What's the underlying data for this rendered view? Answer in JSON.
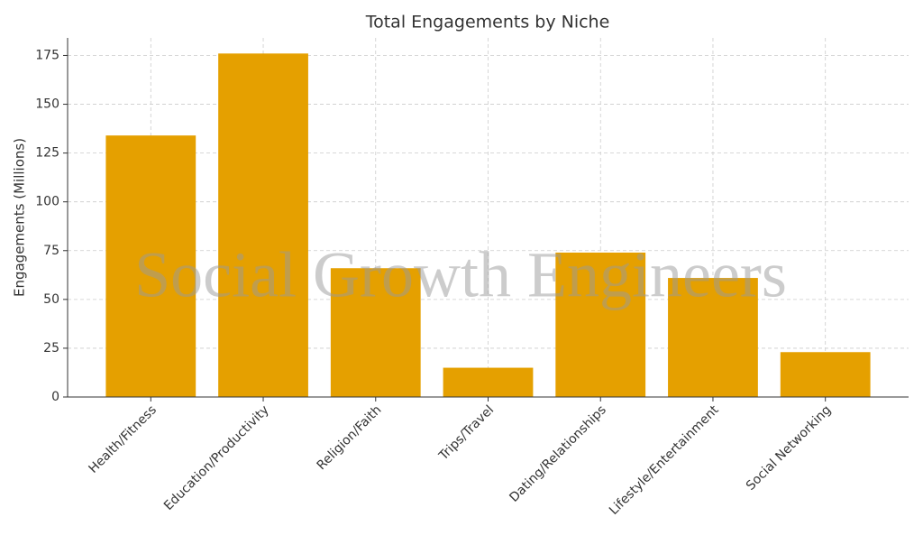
{
  "chart_data": {
    "type": "bar",
    "title": "Total Engagements by Niche",
    "y_label": "Engagements (Millions)",
    "watermark": "Social Growth Engineers",
    "categories": [
      "Health/Fitness",
      "Education/Productivity",
      "Religion/Faith",
      "Trips/Travel",
      "Dating/Relationships",
      "Lifestyle/Entertainment",
      "Social Networking"
    ],
    "values": [
      134,
      176,
      66,
      15,
      74,
      61,
      23
    ],
    "color": "#e5a000",
    "ylim": [
      0,
      184
    ],
    "yticks": [
      0,
      25,
      50,
      75,
      100,
      125,
      150,
      175
    ],
    "grid": true
  }
}
